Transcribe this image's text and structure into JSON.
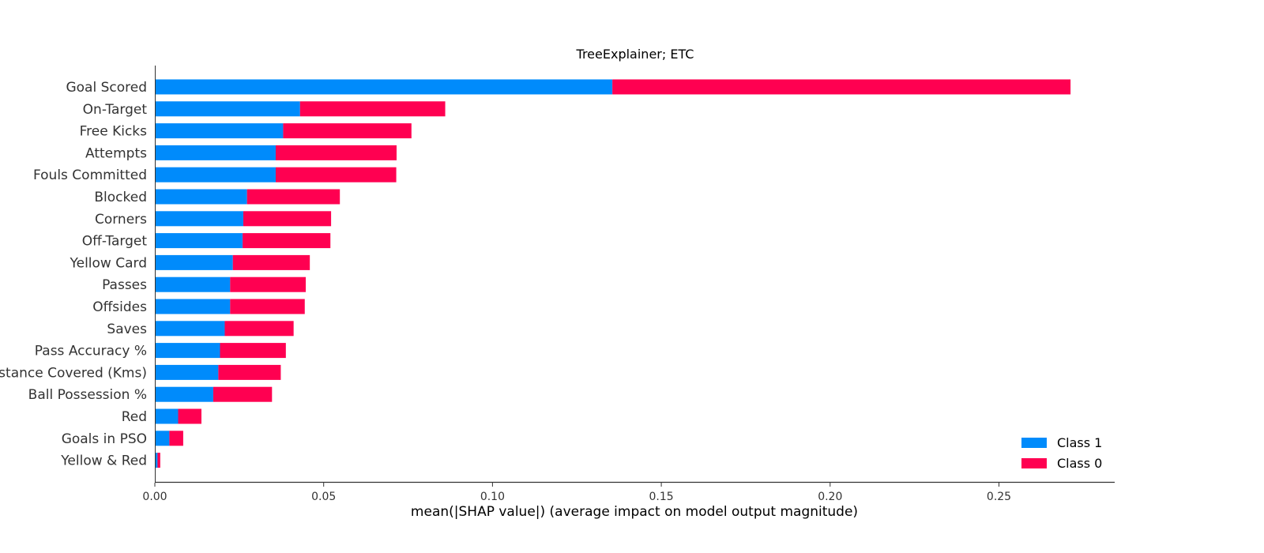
{
  "chart_data": {
    "type": "bar",
    "stacked": true,
    "orientation": "horizontal",
    "title": "TreeExplainer; ETC",
    "xlabel": "mean(|SHAP value|) (average impact on model output magnitude)",
    "ylabel": "",
    "xlim": [
      0,
      0.285
    ],
    "xticks": [
      "0.00",
      "0.05",
      "0.10",
      "0.15",
      "0.20",
      "0.25"
    ],
    "xtick_values": [
      0,
      0.05,
      0.1,
      0.15,
      0.2,
      0.25
    ],
    "grid": false,
    "legend_position": "bottom-right",
    "categories": [
      "Goal Scored",
      "On-Target",
      "Free Kicks",
      "Attempts",
      "Fouls Committed",
      "Blocked",
      "Corners",
      "Off-Target",
      "Yellow Card",
      "Passes",
      "Offsides",
      "Saves",
      "Pass Accuracy %",
      "Distance Covered (Kms)",
      "Ball Possession %",
      "Red",
      "Goals in PSO",
      "Yellow & Red"
    ],
    "series": [
      {
        "name": "Class 1",
        "color": "#008bfb",
        "values": [
          0.1355,
          0.043,
          0.038,
          0.0358,
          0.0358,
          0.0273,
          0.0262,
          0.026,
          0.0231,
          0.0223,
          0.0223,
          0.0207,
          0.0193,
          0.0188,
          0.0173,
          0.0069,
          0.0043,
          0.0008
        ]
      },
      {
        "name": "Class 0",
        "color": "#ff0051",
        "values": [
          0.1357,
          0.043,
          0.038,
          0.0358,
          0.0357,
          0.0275,
          0.026,
          0.026,
          0.0228,
          0.0224,
          0.0221,
          0.0204,
          0.0195,
          0.0185,
          0.0174,
          0.0069,
          0.0041,
          0.0008
        ]
      }
    ]
  }
}
